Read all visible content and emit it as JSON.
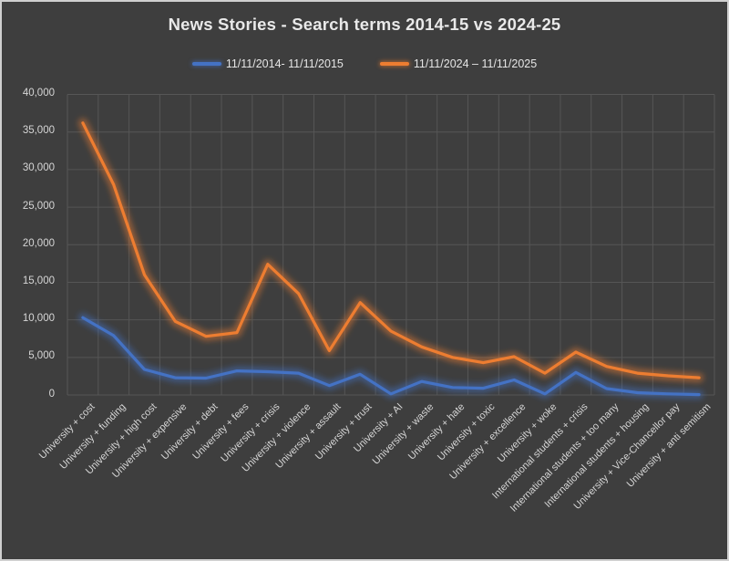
{
  "window": {
    "background_color": "#3E3E3E",
    "border_color": "#CFCFCF",
    "text_color": "#D6D6D6",
    "grid_color": "#565656"
  },
  "chart_data": {
    "type": "line",
    "title": "News Stories - Search terms 2014-15 vs 2024-25",
    "xlabel": "",
    "ylabel": "",
    "ylim": [
      0,
      40000
    ],
    "ytick_step": 5000,
    "ytick_labels": [
      "0",
      "5,000",
      "10,000",
      "15,000",
      "20,000",
      "25,000",
      "30,000",
      "35,000",
      "40,000"
    ],
    "grid": true,
    "legend_position": "top",
    "categories": [
      "University + cost",
      "University + funding",
      "University + high cost",
      "University + expensive",
      "University + debt",
      "University + fees",
      "University + crisis",
      "University + violence",
      "University + assault",
      "University + trust",
      "University + AI",
      "University + waste",
      "University + hate",
      "University + toxic",
      "University + excellence",
      "University + woke",
      "International students + crisis",
      "International students + too many",
      "International students + housing",
      "University + Vice-Chancellor pay",
      "University + anti semitism"
    ],
    "series": [
      {
        "name": "11/11/2014- 11/11/2015",
        "color": "#4472C4",
        "values": [
          10300,
          7900,
          3400,
          2300,
          2250,
          3200,
          3100,
          2900,
          1250,
          2750,
          150,
          1800,
          1000,
          900,
          2000,
          150,
          3000,
          850,
          300,
          150,
          50
        ]
      },
      {
        "name": "11/11/2024 – 11/11/2025",
        "color": "#ED7D31",
        "values": [
          36200,
          28000,
          16000,
          9800,
          7800,
          8300,
          17400,
          13500,
          5900,
          12300,
          8500,
          6400,
          5000,
          4300,
          5100,
          2900,
          5700,
          3800,
          2900,
          2550,
          2300
        ]
      }
    ]
  }
}
